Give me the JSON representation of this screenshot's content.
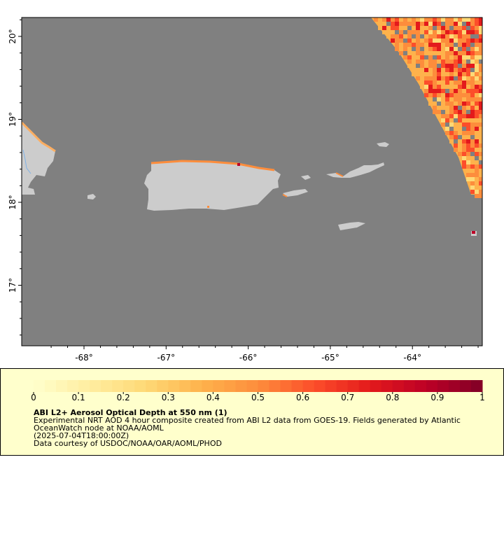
{
  "map": {
    "axes": {
      "x_ticks": [
        "-68°",
        "-67°",
        "-66°",
        "-65°",
        "-64°"
      ],
      "y_ticks": [
        "20°",
        "19°",
        "18°",
        "17°"
      ]
    },
    "colors": {
      "ocean_nodata": "#808080",
      "land": "#cccccc",
      "frame": "#000000",
      "river": "#7fb2e6"
    },
    "features": [
      "hispaniola-coast",
      "puerto-rico",
      "mona-island",
      "vieques",
      "culebra",
      "us-virgin-islands",
      "st-croix",
      "anegada"
    ]
  },
  "legend": {
    "colorbar": {
      "min": 0,
      "max": 1,
      "labels": [
        "0",
        "0.1",
        "0.2",
        "0.3",
        "0.4",
        "0.5",
        "0.6",
        "0.7",
        "0.8",
        "0.9",
        "1"
      ],
      "colormap": "YlOrRd",
      "stops": [
        "#ffffcc",
        "#ffeda0",
        "#fed976",
        "#feb24c",
        "#fd8d3c",
        "#fc4e2a",
        "#e31a1c",
        "#bd0026",
        "#800026"
      ]
    },
    "title": "ABI L2+ Aerosol Optical Depth at 550 nm (1)",
    "description_lines": [
      "Experimental NRT AOD 4 hour composite created from ABI L2 data from GOES-19. Fields generated by Atlantic",
      "OceanWatch node at NOAA/AOML",
      "(2025-07-04T18:00:00Z)",
      "Data courtesy of USDOC/NOAA/OAR/AOML/PHOD"
    ],
    "background": "#ffffcc"
  }
}
